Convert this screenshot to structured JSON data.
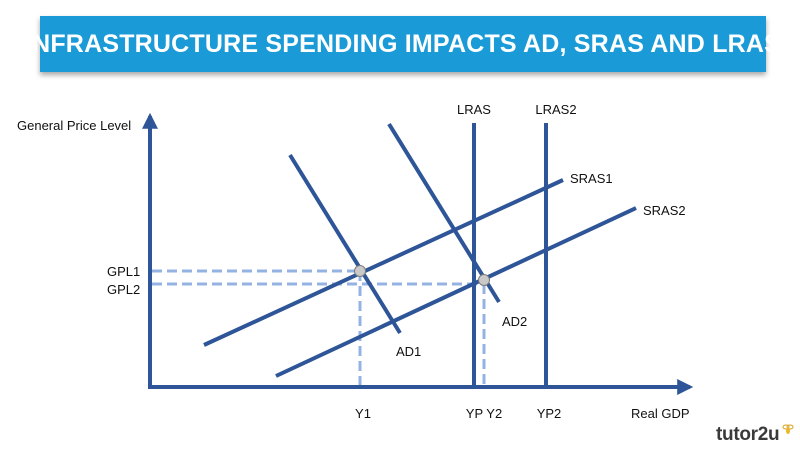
{
  "title": "INFRASTRUCTURE SPENDING IMPACTS AD, SRAS AND LRAS",
  "axes": {
    "y_label": "General Price Level",
    "x_label": "Real GDP"
  },
  "curves": {
    "lras": "LRAS",
    "lras2": "LRAS2",
    "sras1": "SRAS1",
    "sras2": "SRAS2",
    "ad1": "AD1",
    "ad2": "AD2"
  },
  "price_levels": {
    "gpl1": "GPL1",
    "gpl2": "GPL2"
  },
  "output_levels": {
    "y1": "Y1",
    "yp_y2": "YP Y2",
    "yp2": "YP2"
  },
  "brand": "tutor2u",
  "colors": {
    "banner": "#1a9bd7",
    "curve": "#2e5597",
    "guide": "#94b3e3",
    "point": "#c9c9c9"
  }
}
